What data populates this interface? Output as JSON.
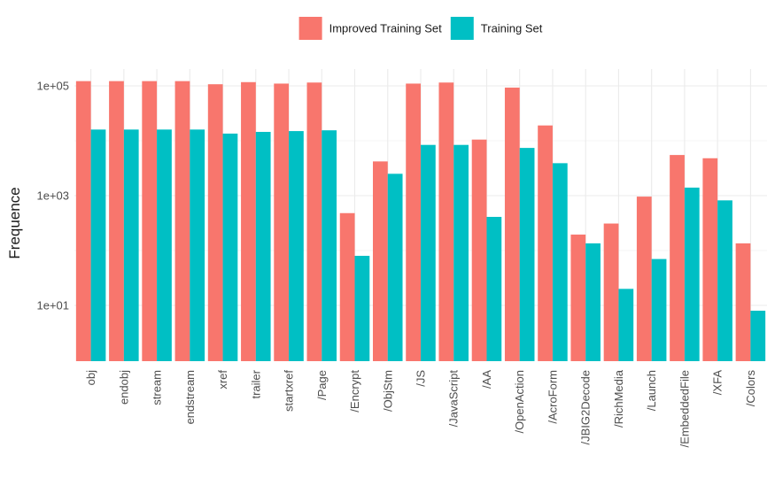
{
  "chart_data": {
    "type": "bar",
    "xlabel": "",
    "ylabel": "Frequence",
    "y_scale": "log10",
    "ylim": [
      1,
      200000
    ],
    "y_ticks": [
      10,
      1000,
      100000
    ],
    "y_tick_labels": [
      "1e+01",
      "1e+03",
      "1e+05"
    ],
    "grid": true,
    "legend_position": "top",
    "categories": [
      "obj",
      "endobj",
      "stream",
      "endstream",
      "xref",
      "trailer",
      "startxref",
      "/Page",
      "/Encrypt",
      "/ObjStm",
      "/JS",
      "/JavaScript",
      "/AA",
      "/OpenAction",
      "/AcroForm",
      "/JBIG2Decode",
      "/RichMedia",
      "/Launch",
      "/EmbeddedFile",
      "/XFA",
      "/Colors"
    ],
    "series": [
      {
        "name": "Improved Training Set",
        "color": "#F8766D",
        "values": [
          122000,
          122000,
          122000,
          122000,
          107000,
          117000,
          110000,
          115000,
          480,
          4200,
          110000,
          115000,
          10500,
          93000,
          19000,
          195,
          310,
          960,
          5500,
          4800,
          135
        ]
      },
      {
        "name": "Training Set",
        "color": "#00BFC4",
        "values": [
          16000,
          16000,
          16000,
          16000,
          13500,
          14500,
          15000,
          15500,
          80,
          2500,
          8400,
          8400,
          410,
          7400,
          3900,
          135,
          20,
          70,
          1400,
          820,
          8
        ]
      }
    ]
  }
}
